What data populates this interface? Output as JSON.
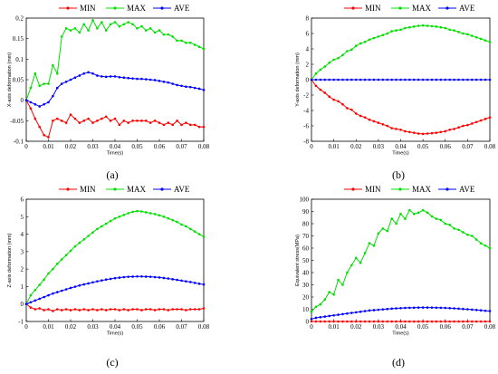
{
  "chart_data": [
    {
      "type": "line",
      "panel": "(a)",
      "xlabel": "Time(s)",
      "ylabel": "X-axis deformation (mm)",
      "xlim": [
        0,
        0.08
      ],
      "ylim": [
        -0.1,
        0.2
      ],
      "xticks": [
        "0",
        "0.01",
        "0.02",
        "0.03",
        "0.04",
        "0.05",
        "0.06",
        "0.07",
        "0.08"
      ],
      "yticks": [
        "-0.1",
        "-0.05",
        "0",
        "0.05",
        "0.1",
        "0.15",
        "0.2"
      ],
      "legend_position": "top",
      "x": [
        0,
        0.002,
        0.004,
        0.006,
        0.008,
        0.01,
        0.012,
        0.014,
        0.016,
        0.018,
        0.02,
        0.022,
        0.024,
        0.026,
        0.028,
        0.03,
        0.032,
        0.034,
        0.036,
        0.038,
        0.04,
        0.042,
        0.044,
        0.046,
        0.048,
        0.05,
        0.052,
        0.054,
        0.056,
        0.058,
        0.06,
        0.062,
        0.064,
        0.066,
        0.068,
        0.07,
        0.072,
        0.074,
        0.076,
        0.078,
        0.08
      ],
      "series": [
        {
          "name": "MIN",
          "color": "#ff0000",
          "values": [
            0,
            -0.02,
            -0.045,
            -0.065,
            -0.085,
            -0.09,
            -0.05,
            -0.045,
            -0.05,
            -0.055,
            -0.035,
            -0.045,
            -0.055,
            -0.05,
            -0.045,
            -0.055,
            -0.05,
            -0.045,
            -0.04,
            -0.05,
            -0.045,
            -0.06,
            -0.05,
            -0.055,
            -0.05,
            -0.05,
            -0.05,
            -0.05,
            -0.055,
            -0.05,
            -0.055,
            -0.06,
            -0.055,
            -0.06,
            -0.05,
            -0.06,
            -0.055,
            -0.06,
            -0.06,
            -0.065,
            -0.065
          ]
        },
        {
          "name": "MAX",
          "color": "#00e000",
          "values": [
            0,
            0.03,
            0.065,
            0.035,
            0.04,
            0.04,
            0.085,
            0.065,
            0.155,
            0.175,
            0.17,
            0.175,
            0.165,
            0.185,
            0.17,
            0.195,
            0.175,
            0.19,
            0.17,
            0.185,
            0.19,
            0.18,
            0.185,
            0.19,
            0.185,
            0.175,
            0.18,
            0.17,
            0.175,
            0.165,
            0.17,
            0.16,
            0.16,
            0.155,
            0.145,
            0.145,
            0.14,
            0.14,
            0.135,
            0.13,
            0.125
          ]
        },
        {
          "name": "AVE",
          "color": "#0000ff",
          "values": [
            0,
            -0.005,
            -0.01,
            -0.015,
            -0.01,
            -0.005,
            0.01,
            0.03,
            0.04,
            0.045,
            0.05,
            0.055,
            0.06,
            0.065,
            0.068,
            0.065,
            0.06,
            0.058,
            0.057,
            0.058,
            0.058,
            0.056,
            0.055,
            0.054,
            0.053,
            0.052,
            0.052,
            0.051,
            0.05,
            0.049,
            0.047,
            0.045,
            0.043,
            0.04,
            0.037,
            0.035,
            0.033,
            0.032,
            0.03,
            0.028,
            0.025
          ]
        }
      ]
    },
    {
      "type": "line",
      "panel": "(b)",
      "xlabel": "Time(s)",
      "ylabel": "Y-axis deformation (mm)",
      "xlim": [
        0,
        0.08
      ],
      "ylim": [
        -8,
        8
      ],
      "xticks": [
        "0",
        "0.01",
        "0.02",
        "0.03",
        "0.04",
        "0.05",
        "0.06",
        "0.07",
        "0.08"
      ],
      "yticks": [
        "-8",
        "-6",
        "-4",
        "-2",
        "0",
        "2",
        "4",
        "6",
        "8"
      ],
      "legend_position": "top",
      "x": [
        0,
        0.002,
        0.004,
        0.006,
        0.008,
        0.01,
        0.012,
        0.014,
        0.016,
        0.018,
        0.02,
        0.022,
        0.024,
        0.026,
        0.028,
        0.03,
        0.032,
        0.034,
        0.036,
        0.038,
        0.04,
        0.042,
        0.044,
        0.046,
        0.048,
        0.05,
        0.052,
        0.054,
        0.056,
        0.058,
        0.06,
        0.062,
        0.064,
        0.066,
        0.068,
        0.07,
        0.072,
        0.074,
        0.076,
        0.078,
        0.08
      ],
      "series": [
        {
          "name": "MIN",
          "color": "#ff0000",
          "values": [
            0,
            -0.8,
            -1.3,
            -1.7,
            -2.2,
            -2.6,
            -2.8,
            -3.2,
            -3.7,
            -3.9,
            -4.4,
            -4.7,
            -4.9,
            -5.2,
            -5.4,
            -5.6,
            -5.8,
            -6.0,
            -6.3,
            -6.4,
            -6.5,
            -6.7,
            -6.8,
            -6.9,
            -7.0,
            -7.05,
            -7.0,
            -6.95,
            -6.9,
            -6.8,
            -6.7,
            -6.5,
            -6.4,
            -6.2,
            -6.0,
            -5.9,
            -5.7,
            -5.5,
            -5.3,
            -5.1,
            -4.9
          ]
        },
        {
          "name": "MAX",
          "color": "#00e000",
          "values": [
            0,
            0.8,
            1.3,
            1.7,
            2.2,
            2.6,
            2.8,
            3.2,
            3.7,
            3.9,
            4.4,
            4.7,
            4.9,
            5.2,
            5.4,
            5.6,
            5.8,
            6.0,
            6.3,
            6.4,
            6.5,
            6.7,
            6.8,
            6.9,
            7.0,
            7.05,
            7.0,
            6.95,
            6.9,
            6.8,
            6.7,
            6.5,
            6.4,
            6.2,
            6.0,
            5.9,
            5.7,
            5.5,
            5.3,
            5.1,
            4.9
          ]
        },
        {
          "name": "AVE",
          "color": "#0000ff",
          "values": [
            0,
            0,
            0,
            0,
            0,
            0,
            0,
            0,
            0,
            0,
            0,
            0,
            0,
            0,
            0,
            0,
            0,
            0,
            0,
            0,
            0,
            0,
            0,
            0,
            0,
            0,
            0,
            0,
            0,
            0,
            0,
            0,
            0,
            0,
            0,
            0,
            0,
            0,
            0,
            0,
            0
          ]
        }
      ]
    },
    {
      "type": "line",
      "panel": "(c)",
      "xlabel": "Time(s)",
      "ylabel": "Z-axis deformation (mm)",
      "xlim": [
        0,
        0.08
      ],
      "ylim": [
        -1,
        6
      ],
      "xticks": [
        "0",
        "0.01",
        "0.02",
        "0.03",
        "0.04",
        "0.05",
        "0.06",
        "0.07",
        "0.08"
      ],
      "yticks": [
        "-1",
        "0",
        "1",
        "2",
        "3",
        "4",
        "5",
        "6"
      ],
      "legend_position": "top",
      "x": [
        0,
        0.002,
        0.004,
        0.006,
        0.008,
        0.01,
        0.012,
        0.014,
        0.016,
        0.018,
        0.02,
        0.022,
        0.024,
        0.026,
        0.028,
        0.03,
        0.032,
        0.034,
        0.036,
        0.038,
        0.04,
        0.042,
        0.044,
        0.046,
        0.048,
        0.05,
        0.052,
        0.054,
        0.056,
        0.058,
        0.06,
        0.062,
        0.064,
        0.066,
        0.068,
        0.07,
        0.072,
        0.074,
        0.076,
        0.078,
        0.08
      ],
      "series": [
        {
          "name": "MIN",
          "color": "#ff0000",
          "values": [
            0,
            -0.2,
            -0.3,
            -0.25,
            -0.35,
            -0.3,
            -0.4,
            -0.3,
            -0.35,
            -0.3,
            -0.35,
            -0.3,
            -0.35,
            -0.3,
            -0.35,
            -0.3,
            -0.35,
            -0.3,
            -0.35,
            -0.3,
            -0.3,
            -0.35,
            -0.3,
            -0.35,
            -0.3,
            -0.3,
            -0.35,
            -0.3,
            -0.3,
            -0.35,
            -0.3,
            -0.3,
            -0.35,
            -0.3,
            -0.3,
            -0.3,
            -0.35,
            -0.3,
            -0.3,
            -0.3,
            -0.25
          ]
        },
        {
          "name": "MAX",
          "color": "#00e000",
          "values": [
            0,
            0.5,
            0.8,
            1.1,
            1.4,
            1.75,
            2.0,
            2.3,
            2.55,
            2.8,
            3.05,
            3.3,
            3.5,
            3.7,
            3.9,
            4.1,
            4.3,
            4.45,
            4.6,
            4.75,
            4.9,
            5.0,
            5.1,
            5.2,
            5.28,
            5.32,
            5.3,
            5.25,
            5.2,
            5.15,
            5.08,
            5.0,
            4.9,
            4.8,
            4.7,
            4.55,
            4.45,
            4.3,
            4.15,
            4.0,
            3.85
          ]
        },
        {
          "name": "AVE",
          "color": "#0000ff",
          "values": [
            0,
            0.1,
            0.2,
            0.3,
            0.4,
            0.5,
            0.6,
            0.68,
            0.76,
            0.84,
            0.92,
            0.99,
            1.06,
            1.12,
            1.18,
            1.24,
            1.3,
            1.35,
            1.4,
            1.44,
            1.48,
            1.51,
            1.54,
            1.56,
            1.57,
            1.58,
            1.58,
            1.57,
            1.56,
            1.54,
            1.52,
            1.49,
            1.46,
            1.42,
            1.38,
            1.34,
            1.3,
            1.26,
            1.21,
            1.16,
            1.12
          ]
        }
      ]
    },
    {
      "type": "line",
      "panel": "(d)",
      "xlabel": "Time(s)",
      "ylabel": "Equivalent stress(MPa)",
      "xlim": [
        0,
        0.08
      ],
      "ylim": [
        0,
        100
      ],
      "xticks": [
        "0",
        "0.01",
        "0.02",
        "0.03",
        "0.04",
        "0.05",
        "0.06",
        "0.07",
        "0.08"
      ],
      "yticks": [
        "0",
        "10",
        "20",
        "30",
        "40",
        "50",
        "60",
        "70",
        "80",
        "90",
        "100"
      ],
      "legend_position": "top",
      "x": [
        0,
        0.002,
        0.004,
        0.006,
        0.008,
        0.01,
        0.012,
        0.014,
        0.016,
        0.018,
        0.02,
        0.022,
        0.024,
        0.026,
        0.028,
        0.03,
        0.032,
        0.034,
        0.036,
        0.038,
        0.04,
        0.042,
        0.044,
        0.046,
        0.048,
        0.05,
        0.052,
        0.054,
        0.056,
        0.058,
        0.06,
        0.062,
        0.064,
        0.066,
        0.068,
        0.07,
        0.072,
        0.074,
        0.076,
        0.078,
        0.08
      ],
      "series": [
        {
          "name": "MIN",
          "color": "#ff0000",
          "values": [
            0,
            0,
            0,
            0,
            0,
            0,
            0,
            0,
            0,
            0,
            0,
            0,
            0,
            0,
            0,
            0,
            0,
            0,
            0,
            0,
            0,
            0,
            0,
            0,
            0,
            0,
            0,
            0,
            0,
            0,
            0,
            0,
            0,
            0,
            0,
            0,
            0,
            0,
            0,
            0,
            0
          ]
        },
        {
          "name": "MAX",
          "color": "#00e000",
          "values": [
            8,
            12,
            14,
            18,
            24,
            22,
            34,
            30,
            40,
            46,
            52,
            48,
            56,
            64,
            62,
            72,
            76,
            74,
            84,
            80,
            88,
            84,
            91,
            88,
            89,
            91,
            89,
            86,
            84,
            83,
            80,
            79,
            76,
            75,
            73,
            71,
            70,
            67,
            64,
            62,
            60
          ]
        },
        {
          "name": "AVE",
          "color": "#0000ff",
          "values": [
            2,
            3,
            3.5,
            4,
            4.5,
            5,
            5.5,
            6,
            6.5,
            7,
            7.5,
            8,
            8.5,
            9,
            9.3,
            9.6,
            9.9,
            10.2,
            10.5,
            10.7,
            10.9,
            11.1,
            11.2,
            11.3,
            11.35,
            11.4,
            11.4,
            11.35,
            11.3,
            11.2,
            11.1,
            10.9,
            10.7,
            10.5,
            10.2,
            10,
            9.7,
            9.4,
            9.1,
            8.8,
            8.5
          ]
        }
      ]
    }
  ]
}
